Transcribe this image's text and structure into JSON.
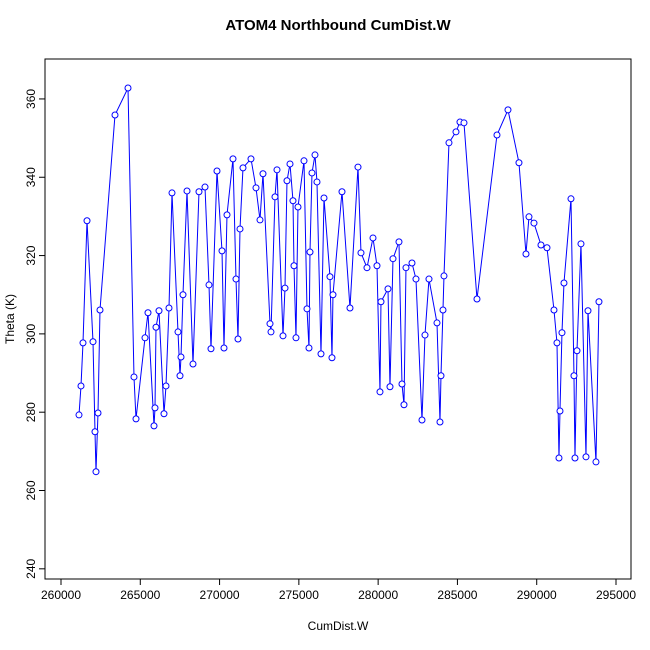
{
  "chart_data": {
    "type": "line",
    "title": "ATOM4 Northbound CumDist.W",
    "x_label": "CumDist.W",
    "y_label": "Theta (K)",
    "x": [
      261135,
      261261,
      261387,
      261640,
      262018,
      262144,
      262207,
      262333,
      262459,
      263405,
      264225,
      264603,
      264730,
      265297,
      265486,
      265865,
      265928,
      265991,
      266180,
      266495,
      266621,
      266810,
      267000,
      267378,
      267504,
      267567,
      267693,
      267946,
      268324,
      268702,
      269081,
      269333,
      269459,
      269837,
      270153,
      270279,
      270468,
      270846,
      271036,
      271162,
      271288,
      271477,
      271981,
      272297,
      272549,
      272738,
      273180,
      273243,
      273495,
      273621,
      274000,
      274125,
      274252,
      274441,
      274630,
      274693,
      274819,
      274945,
      275324,
      275513,
      275639,
      275702,
      275828,
      276017,
      276143,
      276396,
      276585,
      276963,
      277089,
      277152,
      277720,
      278224,
      278729,
      278918,
      279296,
      279675,
      279927,
      280116,
      280179,
      280621,
      280747,
      280936,
      281314,
      281503,
      281630,
      281756,
      282134,
      282386,
      282765,
      282954,
      283206,
      283711,
      283900,
      283963,
      284089,
      284152,
      284467,
      284909,
      285161,
      285413,
      286233,
      287494,
      288188,
      288881,
      289323,
      289512,
      289827,
      290269,
      290647,
      291089,
      291278,
      291404,
      291467,
      291593,
      291719,
      292161,
      292350,
      292413,
      292539,
      292791,
      293107,
      293233,
      293737,
      293926
    ],
    "values": [
      279.3,
      286.7,
      297.7,
      328.9,
      298.0,
      275.0,
      264.8,
      279.8,
      306.1,
      355.9,
      362.8,
      289.0,
      278.3,
      299.0,
      305.4,
      276.5,
      281.1,
      301.7,
      305.9,
      279.6,
      286.7,
      306.6,
      336.0,
      300.5,
      289.3,
      294.1,
      310.0,
      336.5,
      292.3,
      336.3,
      337.5,
      312.5,
      296.2,
      341.6,
      321.2,
      296.4,
      330.4,
      344.7,
      314.0,
      298.7,
      326.8,
      342.4,
      344.7,
      337.3,
      329.1,
      340.9,
      302.6,
      300.5,
      335.0,
      341.9,
      299.5,
      311.7,
      339.1,
      343.4,
      334.0,
      317.4,
      299.0,
      332.4,
      344.2,
      306.4,
      296.4,
      320.9,
      341.1,
      345.7,
      338.8,
      294.9,
      334.7,
      314.6,
      293.9,
      310.0,
      336.3,
      306.6,
      342.6,
      320.7,
      316.9,
      324.5,
      317.4,
      285.2,
      308.2,
      311.5,
      286.5,
      319.2,
      323.5,
      287.2,
      281.9,
      316.9,
      318.1,
      314.0,
      278.0,
      299.7,
      314.0,
      302.8,
      277.5,
      289.3,
      306.1,
      314.8,
      348.8,
      351.6,
      354.1,
      353.9,
      308.9,
      350.8,
      357.2,
      343.7,
      320.4,
      329.9,
      328.3,
      322.7,
      322.0,
      306.1,
      297.7,
      268.3,
      280.3,
      300.3,
      313.0,
      334.5,
      289.3,
      268.3,
      295.7,
      323.0,
      268.6,
      305.9,
      267.3,
      308.2
    ],
    "color": "#0000ff",
    "xlim": [
      258991,
      295946
    ],
    "ylim": [
      237.4,
      370.2
    ],
    "xticks": [
      260000,
      265000,
      270000,
      275000,
      280000,
      285000,
      290000,
      295000
    ],
    "yticks": [
      240,
      260,
      280,
      300,
      320,
      340,
      360
    ]
  }
}
